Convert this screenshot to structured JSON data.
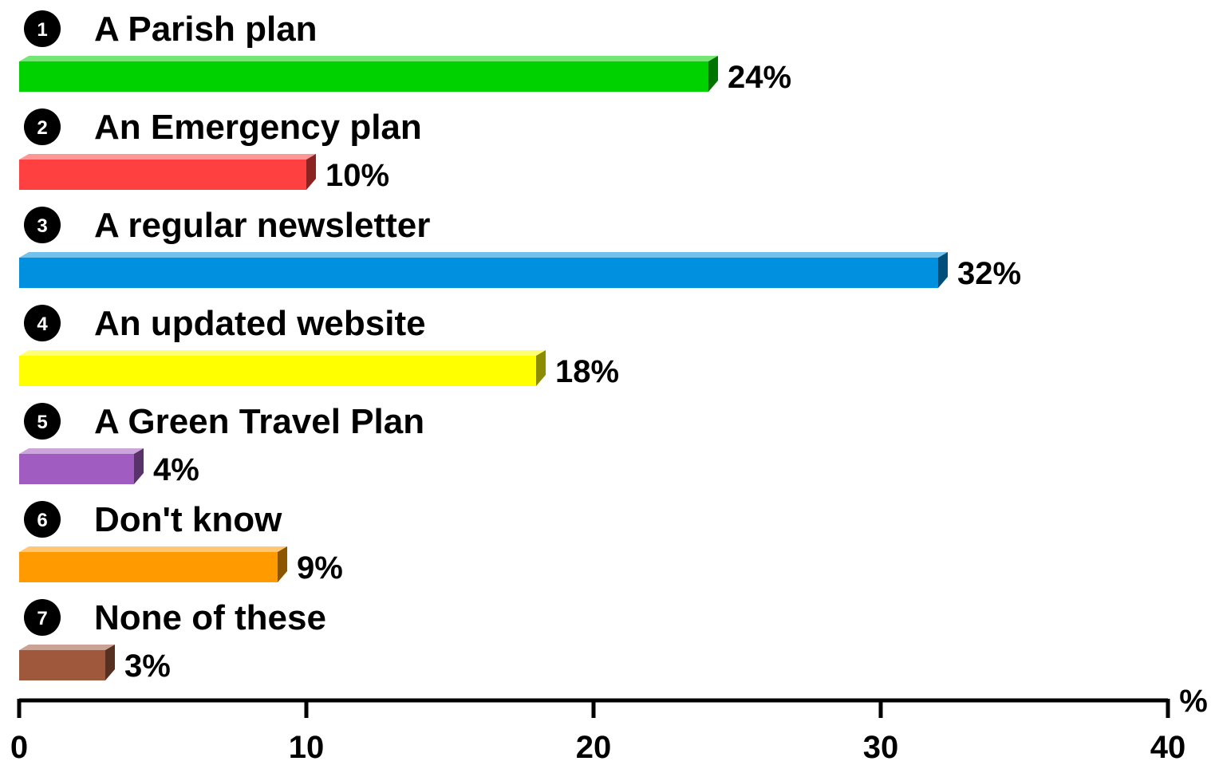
{
  "chart_data": {
    "type": "bar",
    "orientation": "horizontal",
    "categories": [
      "A Parish plan",
      "An Emergency plan",
      "A regular newsletter",
      "An updated website",
      "A Green Travel Plan",
      "Don't know",
      "None of these"
    ],
    "numbers": [
      "1",
      "2",
      "3",
      "4",
      "5",
      "6",
      "7"
    ],
    "values": [
      24,
      10,
      32,
      18,
      4,
      9,
      3
    ],
    "value_labels": [
      "24%",
      "10%",
      "32%",
      "18%",
      "4%",
      "9%",
      "3%"
    ],
    "colors": [
      "#00d200",
      "#ff4040",
      "#0090e0",
      "#ffff00",
      "#a05cc0",
      "#ff9a00",
      "#a0583c"
    ],
    "xlim": [
      0,
      40
    ],
    "xticks": [
      0,
      10,
      20,
      30,
      40
    ],
    "xtick_labels": [
      "0",
      "10",
      "20",
      "30",
      "40"
    ],
    "x_unit": "%",
    "grid": false,
    "legend": "none",
    "bar_style": "3d"
  }
}
